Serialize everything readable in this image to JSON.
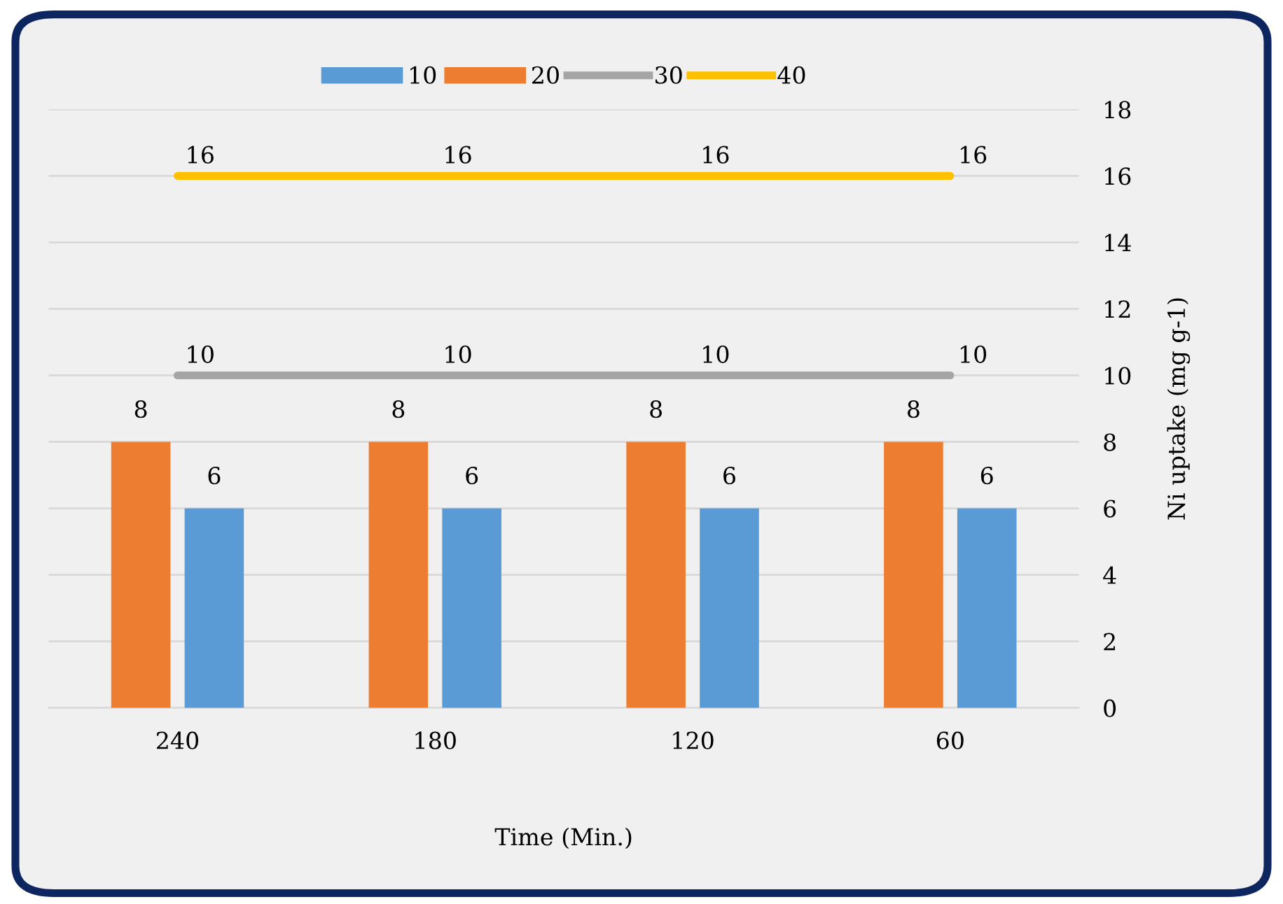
{
  "chart_data": {
    "type": "bar",
    "categories": [
      "240",
      "180",
      "120",
      "60"
    ],
    "series": [
      {
        "name": "10",
        "color": "#5b9bd5",
        "values": [
          6,
          6,
          6,
          6
        ]
      },
      {
        "name": "20",
        "color": "#ed7d31",
        "values": [
          8,
          8,
          8,
          8
        ]
      },
      {
        "name": "30",
        "type": "line",
        "color": "#a5a5a5",
        "values": [
          10,
          10,
          10,
          10
        ]
      },
      {
        "name": "40",
        "type": "line",
        "color": "#ffc000",
        "values": [
          16,
          16,
          16,
          16
        ]
      }
    ],
    "xlabel": "Time (Min.)",
    "ylabel": "Ni uptake (mg g-1)",
    "ylim": [
      0,
      18
    ],
    "yticks": [
      0,
      2,
      4,
      6,
      8,
      10,
      12,
      14,
      16,
      18
    ],
    "grid": "y",
    "legend": "top",
    "data_labels": true,
    "marker": "none"
  }
}
